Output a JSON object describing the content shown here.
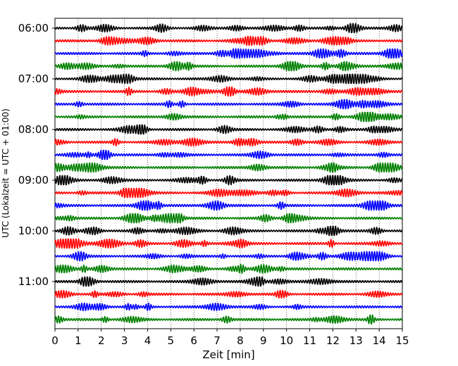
{
  "chart_data": {
    "type": "line",
    "title": "",
    "xlabel": "Zeit  [min]",
    "ylabel": "UTC (Lokalzeit = UTC + 01:00)",
    "xlim": [
      0,
      15
    ],
    "x_ticks": [
      "0",
      "1",
      "2",
      "3",
      "4",
      "5",
      "6",
      "7",
      "8",
      "9",
      "10",
      "11",
      "12",
      "13",
      "14",
      "15"
    ],
    "y_tick_labels": [
      "06:00",
      "07:00",
      "08:00",
      "09:00",
      "10:00",
      "11:00"
    ],
    "grid": "vertical dotted lines at each minute",
    "legend": "none",
    "trace_interval_minutes": 15,
    "trace_colors": [
      "#000000",
      "#ff0000",
      "#0000ff",
      "#008000"
    ],
    "series": [
      {
        "time": "06:00",
        "color": "#000000"
      },
      {
        "time": "06:15",
        "color": "#ff0000"
      },
      {
        "time": "06:30",
        "color": "#0000ff"
      },
      {
        "time": "06:45",
        "color": "#008000"
      },
      {
        "time": "07:00",
        "color": "#000000"
      },
      {
        "time": "07:15",
        "color": "#ff0000"
      },
      {
        "time": "07:30",
        "color": "#0000ff"
      },
      {
        "time": "07:45",
        "color": "#008000"
      },
      {
        "time": "08:00",
        "color": "#000000"
      },
      {
        "time": "08:15",
        "color": "#ff0000"
      },
      {
        "time": "08:30",
        "color": "#0000ff"
      },
      {
        "time": "08:45",
        "color": "#008000"
      },
      {
        "time": "09:00",
        "color": "#000000"
      },
      {
        "time": "09:15",
        "color": "#ff0000"
      },
      {
        "time": "09:30",
        "color": "#0000ff"
      },
      {
        "time": "09:45",
        "color": "#008000"
      },
      {
        "time": "10:00",
        "color": "#000000"
      },
      {
        "time": "10:15",
        "color": "#ff0000"
      },
      {
        "time": "10:30",
        "color": "#0000ff"
      },
      {
        "time": "10:45",
        "color": "#008000"
      },
      {
        "time": "11:00",
        "color": "#000000"
      },
      {
        "time": "11:15",
        "color": "#ff0000"
      },
      {
        "time": "11:30",
        "color": "#0000ff"
      },
      {
        "time": "11:45",
        "color": "#008000"
      }
    ]
  }
}
